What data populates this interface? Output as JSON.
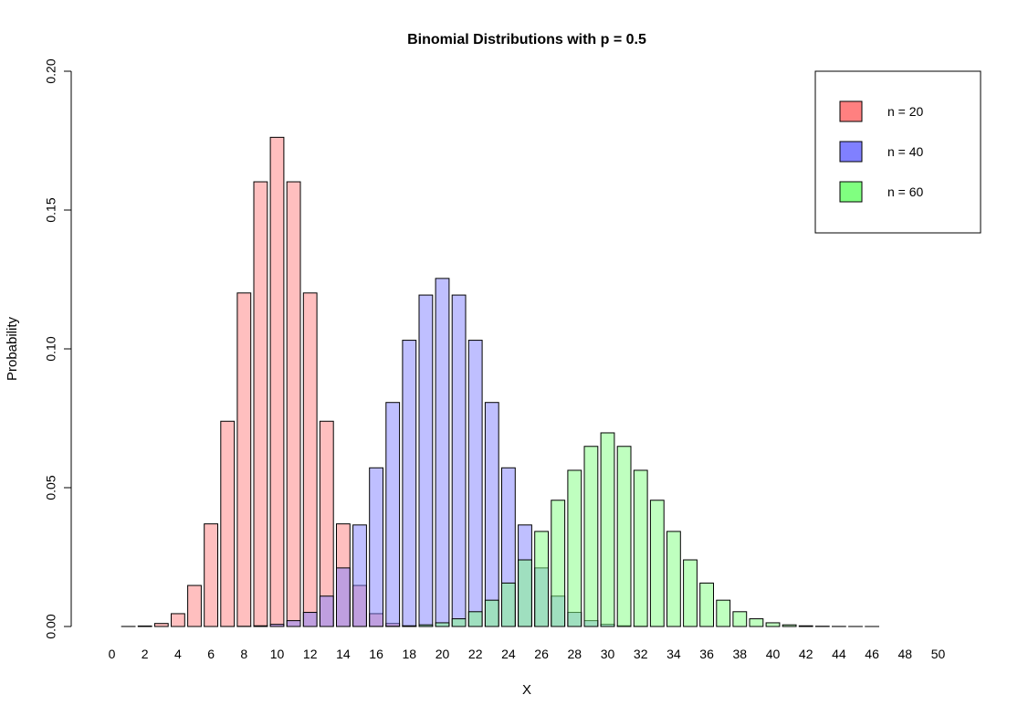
{
  "chart_data": {
    "type": "bar",
    "title": "Binomial Distributions with p = 0.5",
    "xlabel": "X",
    "ylabel": "Probability",
    "ylim": [
      0,
      0.2
    ],
    "y_ticks": [
      "0.00",
      "0.05",
      "0.10",
      "0.15",
      "0.20"
    ],
    "x": [
      0,
      1,
      2,
      3,
      4,
      5,
      6,
      7,
      8,
      9,
      10,
      11,
      12,
      13,
      14,
      15,
      16,
      17,
      18,
      19,
      20,
      21,
      22,
      23,
      24,
      25,
      26,
      27,
      28,
      29,
      30,
      31,
      32,
      33,
      34,
      35,
      36,
      37,
      38,
      39,
      40,
      41,
      42,
      43,
      44,
      45,
      46,
      47,
      48,
      49,
      50
    ],
    "x_tick_labels": [
      "0",
      "2",
      "4",
      "6",
      "8",
      "10",
      "12",
      "14",
      "16",
      "18",
      "20",
      "22",
      "24",
      "26",
      "28",
      "30",
      "32",
      "34",
      "36",
      "38",
      "40",
      "42",
      "44",
      "46",
      "48",
      "50"
    ],
    "grid": false,
    "legend_position": "top-right",
    "series": [
      {
        "name": "n = 20",
        "color": "#ff8080",
        "values": [
          1e-06,
          1.9e-05,
          0.000181,
          0.001087,
          0.004621,
          0.014786,
          0.036964,
          0.073929,
          0.120134,
          0.160179,
          0.176197,
          0.160179,
          0.120134,
          0.073929,
          0.036964,
          0.014786,
          0.004621,
          0.001087,
          0.000181,
          1.9e-05,
          1e-06,
          0,
          0,
          0,
          0,
          0,
          0,
          0,
          0,
          0,
          0,
          0,
          0,
          0,
          0,
          0,
          0,
          0,
          0,
          0,
          0,
          0,
          0,
          0,
          0,
          0,
          0,
          0,
          0,
          0,
          0
        ]
      },
      {
        "name": "n = 40",
        "color": "#8080ff",
        "values": [
          0,
          0,
          0,
          0,
          0,
          0,
          4e-06,
          1.7e-05,
          7e-05,
          0.000249,
          0.000772,
          0.002104,
          0.005081,
          0.010941,
          0.0211,
          0.036577,
          0.057153,
          0.080686,
          0.103103,
          0.119382,
          0.125371,
          0.119382,
          0.103103,
          0.080686,
          0.057153,
          0.036577,
          0.0211,
          0.010941,
          0.005081,
          0.002104,
          0.000772,
          0.000249,
          7e-05,
          1.7e-05,
          4e-06,
          0,
          0,
          0,
          0,
          0,
          0,
          0,
          0,
          0,
          0,
          0,
          0,
          0,
          0,
          0,
          0
        ]
      },
      {
        "name": "n = 60",
        "color": "#80ff80",
        "values": [
          0,
          0,
          0,
          0,
          0,
          0,
          0,
          0,
          0,
          0,
          0,
          0,
          0,
          0,
          3e-06,
          1e-05,
          3.1e-05,
          9.1e-05,
          0.000243,
          0.000594,
          0.001336,
          0.002775,
          0.005328,
          0.009479,
          0.015648,
          0.024003,
          0.034242,
          0.045475,
          0.056263,
          0.06488,
          0.069746,
          0.06488,
          0.056263,
          0.045475,
          0.034242,
          0.024003,
          0.015648,
          0.009479,
          0.005328,
          0.002775,
          0.001336,
          0.000594,
          0.000243,
          9.1e-05,
          3.1e-05,
          1e-05,
          3e-06,
          1e-06,
          0,
          0,
          0
        ]
      }
    ]
  }
}
